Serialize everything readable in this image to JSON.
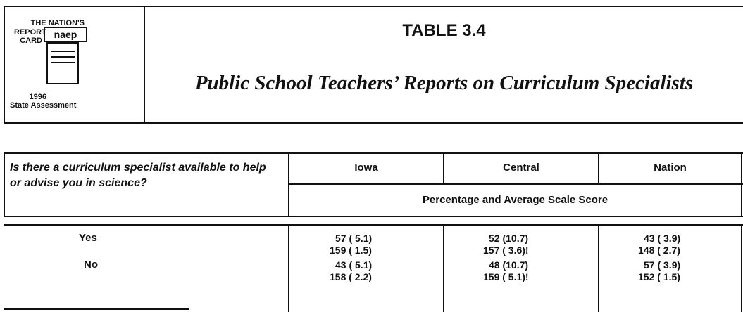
{
  "logo": {
    "line1": "THE NATION'S",
    "line2": "REPORT",
    "line3": "CARD",
    "badge": "naep",
    "year": "1996",
    "subtitle": "State Assessment"
  },
  "header": {
    "title": "TABLE 3.4",
    "subtitle": "Public School Teachers’ Reports on Curriculum Specialists"
  },
  "table": {
    "question": "Is there a curriculum specialist available to help or advise you in science?",
    "columns": [
      "Iowa",
      "Central",
      "Nation"
    ],
    "subheader": "Percentage and Average Scale Score",
    "rows": [
      {
        "label": "Yes",
        "cells": [
          [
            "57 ( 5.1)",
            "159 ( 1.5)"
          ],
          [
            "52 (10.7)",
            "157 ( 3.6)!"
          ],
          [
            "43 ( 3.9)",
            "148 ( 2.7)"
          ]
        ]
      },
      {
        "label": "No",
        "cells": [
          [
            "43 ( 5.1)",
            "158 ( 2.2)"
          ],
          [
            "48 (10.7)",
            "159 ( 5.1)!"
          ],
          [
            "57 ( 3.9)",
            "152 ( 1.5)"
          ]
        ]
      }
    ]
  }
}
